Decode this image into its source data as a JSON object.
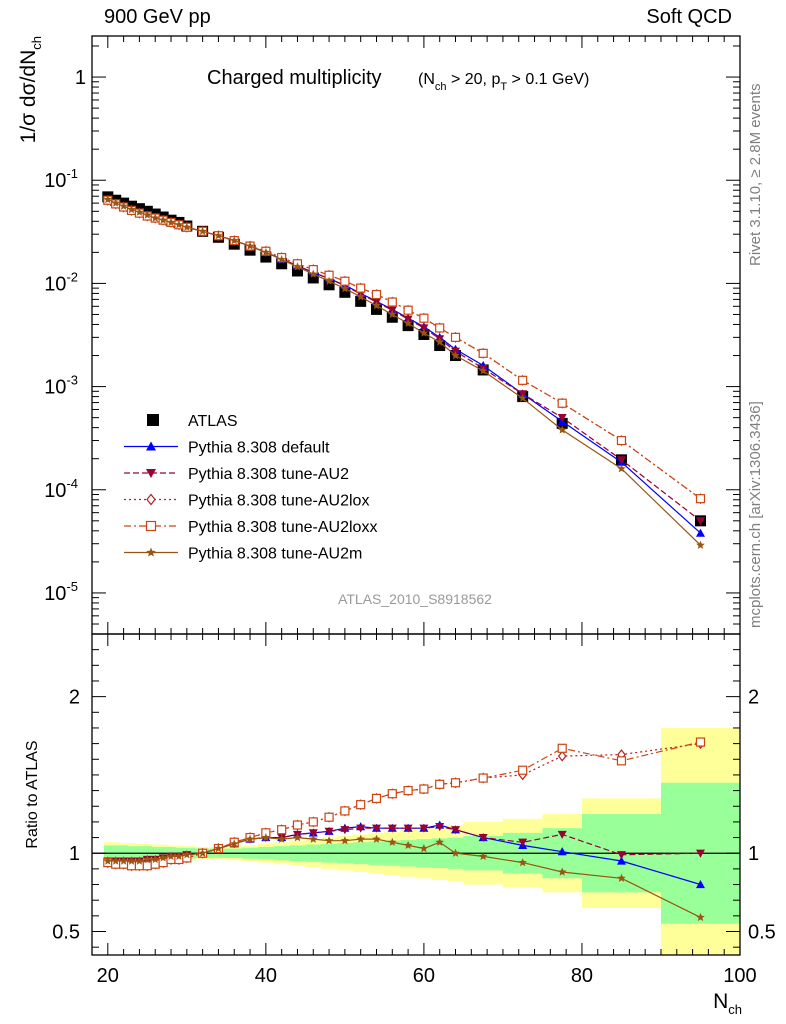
{
  "header": {
    "left": "900 GeV pp",
    "right": "Soft QCD"
  },
  "side_labels": {
    "rivet": "Rivet 3.1.10, ≥ 2.8M events",
    "mcplots": "mcplots.cern.ch [arXiv:1306.3436]"
  },
  "colors": {
    "data": "#000000",
    "default": "#0000ff",
    "au2": "#990033",
    "au2lox": "#b22222",
    "au2loxx": "#cc4411",
    "au2m": "#995511",
    "band_inner": "#99ff99",
    "band_outer": "#ffff99"
  },
  "chart_data": [
    {
      "type": "scatter",
      "panel": "main",
      "title": "Charged multiplicity",
      "title_sub": "(N_ch > 20, p_T > 0.1 GeV)",
      "analysis_label": "ATLAS_2010_S8918562",
      "ylabel": "1/σ dσ/dN_ch",
      "yscale": "log",
      "ylim": [
        4e-06,
        2.5
      ],
      "xlim": [
        18,
        100
      ],
      "y_ticks": [
        "10^-5",
        "10^-4",
        "10^-3",
        "10^-2",
        "10^-1",
        "1"
      ],
      "legend_position": "lower-left",
      "x": [
        20,
        21,
        22,
        23,
        24,
        25,
        26,
        27,
        28,
        29,
        30,
        32,
        34,
        36,
        38,
        40,
        42,
        44,
        46,
        48,
        50,
        52,
        54,
        56,
        58,
        60,
        62,
        64,
        67.5,
        72.5,
        77.5,
        85,
        95
      ],
      "series": [
        {
          "name": "ATLAS",
          "key": "data",
          "marker": "square",
          "values": [
            0.069,
            0.064,
            0.06,
            0.056,
            0.053,
            0.05,
            0.047,
            0.044,
            0.041,
            0.039,
            0.036,
            0.032,
            0.028,
            0.024,
            0.021,
            0.018,
            0.0155,
            0.0132,
            0.0113,
            0.0097,
            0.0082,
            0.0067,
            0.0056,
            0.0047,
            0.0039,
            0.0032,
            0.0025,
            0.002,
            0.00145,
            0.0008,
            0.00044,
            0.000195,
            5e-05
          ]
        },
        {
          "name": "Pythia 8.308 default",
          "key": "default",
          "marker": "triangle-up",
          "line": "solid",
          "values": [
            0.065,
            0.06,
            0.056,
            0.052,
            0.049,
            0.046,
            0.043,
            0.041,
            0.039,
            0.037,
            0.035,
            0.032,
            0.029,
            0.026,
            0.023,
            0.02,
            0.0172,
            0.0148,
            0.0128,
            0.0111,
            0.0096,
            0.008,
            0.0067,
            0.0056,
            0.0046,
            0.0038,
            0.003,
            0.0023,
            0.0016,
            0.00085,
            0.00046,
            0.000185,
            3.8e-05
          ]
        },
        {
          "name": "Pythia 8.308 tune-AU2",
          "key": "au2",
          "marker": "triangle-down",
          "line": "dashed",
          "values": [
            0.065,
            0.06,
            0.056,
            0.052,
            0.049,
            0.046,
            0.043,
            0.041,
            0.039,
            0.037,
            0.035,
            0.032,
            0.029,
            0.026,
            0.023,
            0.02,
            0.0172,
            0.0148,
            0.0128,
            0.0111,
            0.0095,
            0.0079,
            0.0066,
            0.0055,
            0.0045,
            0.0037,
            0.0029,
            0.0022,
            0.0015,
            0.00085,
            0.0005,
            0.000195,
            5e-05
          ]
        },
        {
          "name": "Pythia 8.308 tune-AU2lox",
          "key": "au2lox",
          "marker": "diamond-open",
          "line": "dotted",
          "values": [
            0.064,
            0.059,
            0.055,
            0.051,
            0.048,
            0.045,
            0.043,
            0.041,
            0.039,
            0.037,
            0.035,
            0.032,
            0.029,
            0.026,
            0.023,
            0.0205,
            0.0178,
            0.0155,
            0.0136,
            0.012,
            0.0105,
            0.009,
            0.0078,
            0.0066,
            0.0055,
            0.0046,
            0.0037,
            0.003,
            0.0021,
            0.00115,
            0.00069,
            0.0003,
            8.2e-05
          ]
        },
        {
          "name": "Pythia 8.308 tune-AU2loxx",
          "key": "au2loxx",
          "marker": "square-open",
          "line": "dashdot",
          "values": [
            0.064,
            0.059,
            0.055,
            0.051,
            0.048,
            0.045,
            0.043,
            0.041,
            0.039,
            0.037,
            0.035,
            0.032,
            0.029,
            0.026,
            0.023,
            0.0205,
            0.0178,
            0.0155,
            0.0136,
            0.012,
            0.0105,
            0.009,
            0.0078,
            0.0066,
            0.0055,
            0.0046,
            0.0037,
            0.003,
            0.0021,
            0.00115,
            0.00069,
            0.0003,
            8.2e-05
          ]
        },
        {
          "name": "Pythia 8.308 tune-AU2m",
          "key": "au2m",
          "marker": "star",
          "line": "solid",
          "values": [
            0.065,
            0.06,
            0.056,
            0.052,
            0.049,
            0.046,
            0.043,
            0.041,
            0.039,
            0.037,
            0.035,
            0.032,
            0.029,
            0.026,
            0.023,
            0.02,
            0.017,
            0.0145,
            0.0123,
            0.0105,
            0.0089,
            0.0074,
            0.0061,
            0.005,
            0.0041,
            0.0033,
            0.0027,
            0.002,
            0.00142,
            0.00077,
            0.00038,
            0.00016,
            2.9e-05
          ]
        }
      ]
    },
    {
      "type": "scatter",
      "panel": "ratio",
      "xlabel": "N_ch",
      "ylabel": "Ratio to ATLAS",
      "ylim": [
        0.35,
        2.4
      ],
      "xlim": [
        18,
        100
      ],
      "x_ticks": [
        20,
        40,
        60,
        80,
        100
      ],
      "y_ticks": [
        0.5,
        1,
        2
      ],
      "bands": {
        "x_edges": [
          19.5,
          20.5,
          21.5,
          22.5,
          23.5,
          24.5,
          25.5,
          26.5,
          27.5,
          28.5,
          29.5,
          31,
          33,
          35,
          37,
          39,
          41,
          43,
          45,
          47,
          49,
          51,
          53,
          55,
          57,
          59,
          61,
          63,
          65,
          70,
          75,
          80,
          90,
          100
        ],
        "inner_half_width": [
          0.05,
          0.05,
          0.05,
          0.045,
          0.045,
          0.045,
          0.04,
          0.04,
          0.04,
          0.035,
          0.035,
          0.03,
          0.03,
          0.03,
          0.035,
          0.04,
          0.045,
          0.05,
          0.055,
          0.06,
          0.065,
          0.07,
          0.075,
          0.08,
          0.085,
          0.09,
          0.095,
          0.1,
          0.11,
          0.13,
          0.16,
          0.25,
          0.45
        ],
        "outer_half_width": [
          0.07,
          0.07,
          0.065,
          0.065,
          0.06,
          0.06,
          0.055,
          0.055,
          0.05,
          0.05,
          0.045,
          0.04,
          0.04,
          0.045,
          0.05,
          0.06,
          0.07,
          0.08,
          0.09,
          0.1,
          0.11,
          0.12,
          0.13,
          0.14,
          0.15,
          0.16,
          0.17,
          0.18,
          0.2,
          0.22,
          0.25,
          0.35,
          0.8
        ]
      },
      "series": [
        {
          "name": "Pythia 8.308 default",
          "key": "default",
          "values": [
            0.95,
            0.95,
            0.95,
            0.95,
            0.95,
            0.96,
            0.96,
            0.97,
            0.98,
            0.98,
            0.99,
            1.0,
            1.03,
            1.06,
            1.09,
            1.1,
            1.1,
            1.12,
            1.13,
            1.14,
            1.16,
            1.17,
            1.16,
            1.16,
            1.16,
            1.16,
            1.18,
            1.15,
            1.1,
            1.05,
            1.01,
            0.95,
            0.8
          ]
        },
        {
          "name": "Pythia 8.308 tune-AU2",
          "key": "au2",
          "values": [
            0.95,
            0.95,
            0.95,
            0.95,
            0.95,
            0.96,
            0.96,
            0.97,
            0.98,
            0.98,
            0.99,
            1.0,
            1.03,
            1.06,
            1.09,
            1.1,
            1.1,
            1.12,
            1.13,
            1.14,
            1.15,
            1.16,
            1.16,
            1.16,
            1.16,
            1.16,
            1.17,
            1.15,
            1.1,
            1.07,
            1.12,
            0.99,
            1.0
          ]
        },
        {
          "name": "Pythia 8.308 tune-AU2lox",
          "key": "au2lox",
          "values": [
            0.94,
            0.93,
            0.93,
            0.92,
            0.92,
            0.92,
            0.93,
            0.94,
            0.96,
            0.96,
            0.97,
            1.0,
            1.03,
            1.07,
            1.1,
            1.13,
            1.15,
            1.18,
            1.2,
            1.23,
            1.27,
            1.31,
            1.35,
            1.38,
            1.4,
            1.41,
            1.44,
            1.45,
            1.48,
            1.5,
            1.62,
            1.63,
            1.7
          ]
        },
        {
          "name": "Pythia 8.308 tune-AU2loxx",
          "key": "au2loxx",
          "values": [
            0.94,
            0.93,
            0.93,
            0.92,
            0.92,
            0.92,
            0.93,
            0.94,
            0.96,
            0.96,
            0.97,
            1.0,
            1.03,
            1.07,
            1.1,
            1.13,
            1.15,
            1.18,
            1.2,
            1.23,
            1.27,
            1.31,
            1.35,
            1.38,
            1.4,
            1.41,
            1.44,
            1.45,
            1.48,
            1.53,
            1.67,
            1.59,
            1.71
          ]
        },
        {
          "name": "Pythia 8.308 tune-AU2m",
          "key": "au2m",
          "values": [
            0.95,
            0.95,
            0.95,
            0.95,
            0.95,
            0.96,
            0.96,
            0.97,
            0.98,
            0.98,
            0.99,
            1.0,
            1.03,
            1.06,
            1.09,
            1.1,
            1.09,
            1.1,
            1.09,
            1.08,
            1.08,
            1.09,
            1.09,
            1.07,
            1.05,
            1.03,
            1.07,
            1.0,
            0.98,
            0.94,
            0.88,
            0.84,
            0.59
          ]
        }
      ]
    }
  ]
}
